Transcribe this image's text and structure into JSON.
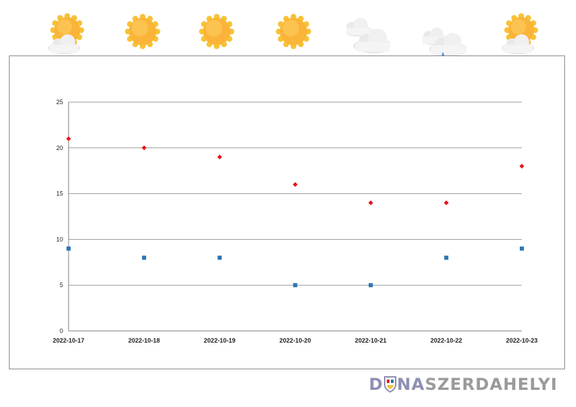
{
  "forecast": [
    {
      "date": "2022-10-17",
      "icon": "sun-behind-cloud-icon"
    },
    {
      "date": "2022-10-18",
      "icon": "sun-icon"
    },
    {
      "date": "2022-10-19",
      "icon": "sun-icon"
    },
    {
      "date": "2022-10-20",
      "icon": "sun-icon"
    },
    {
      "date": "2022-10-21",
      "icon": "cloud-icon"
    },
    {
      "date": "2022-10-22",
      "icon": "rain-cloud-icon"
    },
    {
      "date": "2022-10-23",
      "icon": "sun-behind-cloud-icon"
    }
  ],
  "chart_data": {
    "type": "scatter",
    "title": "",
    "xlabel": "",
    "ylabel": "",
    "categories": [
      "2022-10-17",
      "2022-10-18",
      "2022-10-19",
      "2022-10-20",
      "2022-10-21",
      "2022-10-22",
      "2022-10-23"
    ],
    "yticks": [
      0,
      5,
      10,
      15,
      20,
      25
    ],
    "ylim": [
      0,
      25
    ],
    "grid": true,
    "legend": "none",
    "series": [
      {
        "values": [
          21,
          20,
          19,
          16,
          14,
          14,
          18
        ],
        "color": "#e8141b",
        "marker": "diamond"
      },
      {
        "values": [
          9,
          8,
          8,
          5,
          5,
          8,
          9
        ],
        "color": "#2e75b6",
        "marker": "square"
      }
    ]
  },
  "brand": {
    "part1": "D",
    "part2": "NA",
    "part3": "SZERDAHELYI"
  }
}
